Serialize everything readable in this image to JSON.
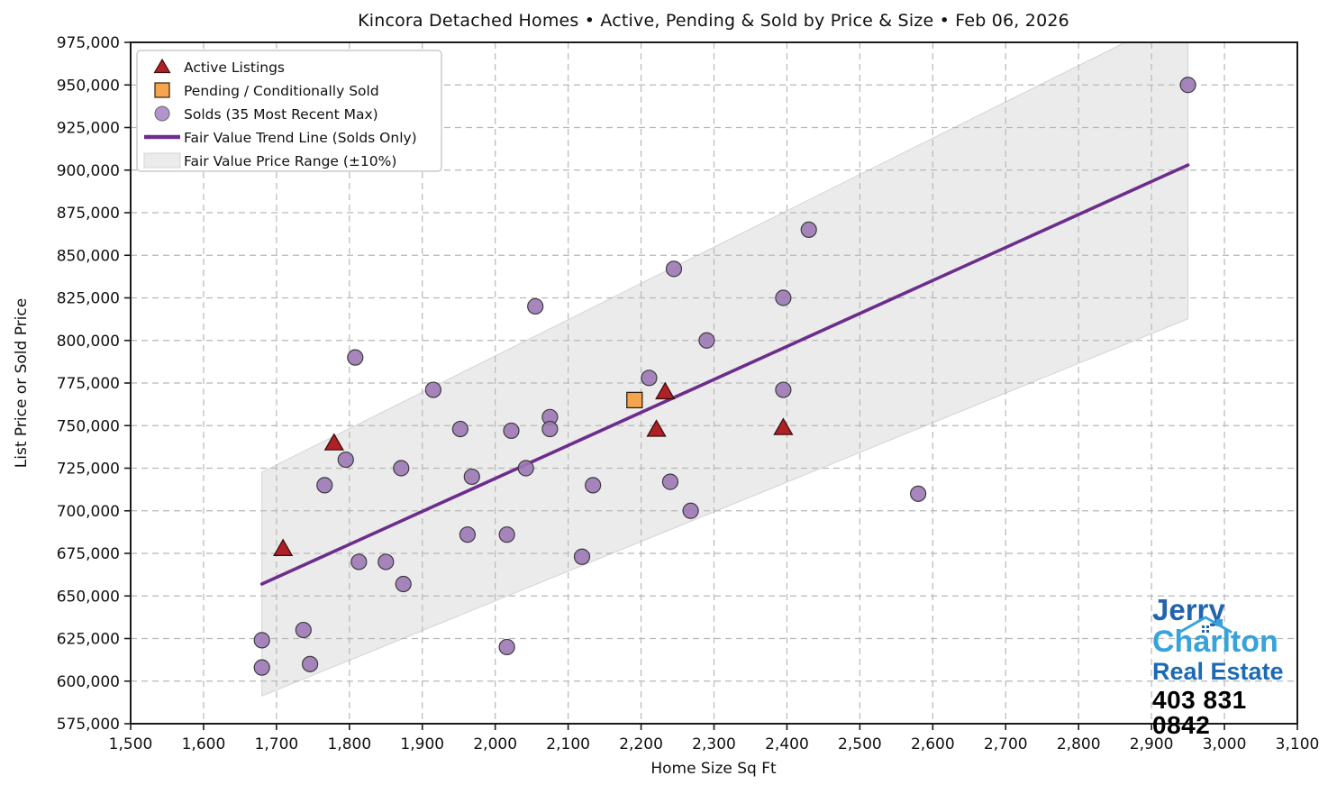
{
  "title": "Kincora Detached Homes • Active, Pending & Sold by Price & Size • Feb 06, 2026",
  "axes": {
    "xlabel": "Home Size Sq Ft",
    "ylabel": "List Price or Sold Price",
    "xlim": [
      1500,
      3100
    ],
    "ylim": [
      575000,
      975000
    ],
    "x_ticks": [
      1500,
      1600,
      1700,
      1800,
      1900,
      2000,
      2100,
      2200,
      2300,
      2400,
      2500,
      2600,
      2700,
      2800,
      2900,
      3000,
      3100
    ],
    "y_ticks": [
      575000,
      600000,
      625000,
      650000,
      675000,
      700000,
      725000,
      750000,
      775000,
      800000,
      825000,
      850000,
      875000,
      900000,
      925000,
      950000,
      975000
    ],
    "grid": true
  },
  "legend": {
    "position": "upper-left",
    "items": [
      {
        "marker": "triangle",
        "label": "Active Listings"
      },
      {
        "marker": "square",
        "label": "Pending / Conditionally Sold"
      },
      {
        "marker": "circle",
        "label": "Solds (35 Most Recent Max)"
      },
      {
        "marker": "line",
        "label": "Fair Value Trend Line (Solds Only)"
      },
      {
        "marker": "patch",
        "label": "Fair Value Price Range (±10%)"
      }
    ]
  },
  "chart_data": {
    "type": "scatter",
    "x_units": "sq ft",
    "y_units": "CAD",
    "series": [
      {
        "name": "Active Listings",
        "marker": "triangle",
        "points": [
          [
            1709,
            678000
          ],
          [
            1779,
            740000
          ],
          [
            2221,
            748000
          ],
          [
            2233,
            770000
          ],
          [
            2395,
            749000
          ]
        ]
      },
      {
        "name": "Pending / Conditionally Sold",
        "marker": "square",
        "points": [
          [
            2191,
            765000
          ]
        ]
      },
      {
        "name": "Solds (35 Most Recent Max)",
        "marker": "circle",
        "points": [
          [
            1680,
            624000
          ],
          [
            1680,
            608000
          ],
          [
            1737,
            630000
          ],
          [
            1746,
            610000
          ],
          [
            1766,
            715000
          ],
          [
            1795,
            730000
          ],
          [
            1808,
            790000
          ],
          [
            1813,
            670000
          ],
          [
            1850,
            670000
          ],
          [
            1871,
            725000
          ],
          [
            1874,
            657000
          ],
          [
            1915,
            771000
          ],
          [
            1952,
            748000
          ],
          [
            1962,
            686000
          ],
          [
            1968,
            720000
          ],
          [
            2016,
            686000
          ],
          [
            2016,
            620000
          ],
          [
            2022,
            747000
          ],
          [
            2042,
            725000
          ],
          [
            2055,
            820000
          ],
          [
            2075,
            755000
          ],
          [
            2075,
            748000
          ],
          [
            2119,
            673000
          ],
          [
            2134,
            715000
          ],
          [
            2211,
            778000
          ],
          [
            2240,
            717000
          ],
          [
            2245,
            842000
          ],
          [
            2268,
            700000
          ],
          [
            2290,
            800000
          ],
          [
            2395,
            825000
          ],
          [
            2395,
            771000
          ],
          [
            2430,
            865000
          ],
          [
            2580,
            710000
          ],
          [
            2950,
            950000
          ]
        ]
      }
    ],
    "trend_line": {
      "name": "Fair Value Trend Line (Solds Only)",
      "points": [
        [
          1680,
          657000
        ],
        [
          2950,
          903000
        ]
      ]
    },
    "band": {
      "name": "Fair Value Price Range (±10%)",
      "polygon": [
        [
          1680,
          591300
        ],
        [
          2950,
          812700
        ],
        [
          2950,
          975000
        ],
        [
          2864,
          975000
        ],
        [
          1680,
          722700
        ]
      ]
    }
  },
  "colors": {
    "active_fill": "#b02025",
    "active_edge": "#38100f",
    "pending_fill": "#f7a44f",
    "pending_edge": "#2e2213",
    "sold_fill": "#9c79b5",
    "sold_edge": "#3d3d3d",
    "sold_legend_fill": "#b293cb",
    "trend": "#6d2d8c",
    "band_fill": "#e7e7e7",
    "band_edge": "#d4d4d4",
    "grid": "#b8b8b8",
    "spine": "#1a1a1a",
    "text": "#111111"
  },
  "logo": {
    "line1": "Jerry",
    "line2": "Charlton",
    "line3": "Real Estate",
    "phone": "403 831 0842"
  }
}
